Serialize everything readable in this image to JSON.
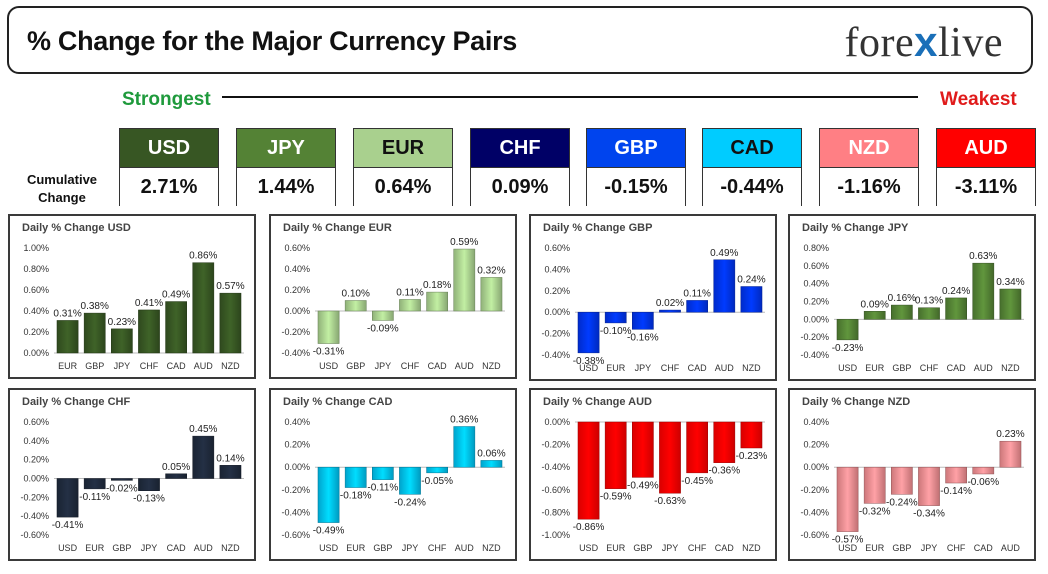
{
  "header": {
    "title": "% Change for the Major Currency Pairs",
    "logo_left": "fore",
    "logo_x": "x",
    "logo_right": "live"
  },
  "strength": {
    "strongest_label": "Strongest",
    "weakest_label": "Weakest",
    "cumulative_label_line1": "Cumulative",
    "cumulative_label_line2": "Change",
    "currencies": [
      {
        "code": "USD",
        "value": "2.71%",
        "head_bg": "#375623",
        "head_fg": "#ffffff"
      },
      {
        "code": "JPY",
        "value": "1.44%",
        "head_bg": "#548235",
        "head_fg": "#ffffff"
      },
      {
        "code": "EUR",
        "value": "0.64%",
        "head_bg": "#a9d08e",
        "head_fg": "#111111"
      },
      {
        "code": "CHF",
        "value": "0.09%",
        "head_bg": "#000066",
        "head_fg": "#ffffff"
      },
      {
        "code": "GBP",
        "value": "-0.15%",
        "head_bg": "#0044ee",
        "head_fg": "#ffffff"
      },
      {
        "code": "CAD",
        "value": "-0.44%",
        "head_bg": "#00ccff",
        "head_fg": "#111111"
      },
      {
        "code": "NZD",
        "value": "-1.16%",
        "head_bg": "#ff7f84",
        "head_fg": "#ffffff"
      },
      {
        "code": "AUD",
        "value": "-3.11%",
        "head_bg": "#ff0000",
        "head_fg": "#ffffff"
      }
    ]
  },
  "chart_data": [
    {
      "type": "bar",
      "title": "Daily % Change USD",
      "categories": [
        "EUR",
        "GBP",
        "JPY",
        "CHF",
        "CAD",
        "AUD",
        "NZD"
      ],
      "values": [
        0.31,
        0.38,
        0.23,
        0.41,
        0.49,
        0.86,
        0.57
      ],
      "labels": [
        "0.31%",
        "0.38%",
        "0.23%",
        "0.41%",
        "0.49%",
        "0.86%",
        "0.57%"
      ],
      "ylim": [
        0,
        1.0
      ],
      "yticks": [
        "0.00%",
        "0.20%",
        "0.40%",
        "0.60%",
        "0.80%",
        "1.00%"
      ],
      "color": "#375623"
    },
    {
      "type": "bar",
      "title": "Daily % Change EUR",
      "categories": [
        "USD",
        "GBP",
        "JPY",
        "CHF",
        "CAD",
        "AUD",
        "NZD"
      ],
      "values": [
        -0.31,
        0.1,
        -0.09,
        0.11,
        0.18,
        0.59,
        0.32
      ],
      "labels": [
        "-0.31%",
        "0.10%",
        "-0.09%",
        "0.11%",
        "0.18%",
        "0.59%",
        "0.32%"
      ],
      "ylim": [
        -0.4,
        0.6
      ],
      "yticks": [
        "-0.40%",
        "-0.20%",
        "0.00%",
        "0.20%",
        "0.40%",
        "0.60%"
      ],
      "color": "#a9d08e"
    },
    {
      "type": "bar",
      "title": "Daily % Change GBP",
      "categories": [
        "USD",
        "EUR",
        "JPY",
        "CHF",
        "CAD",
        "AUD",
        "NZD"
      ],
      "values": [
        -0.38,
        -0.1,
        -0.16,
        0.02,
        0.11,
        0.49,
        0.24
      ],
      "labels": [
        "-0.38%",
        "-0.10%",
        "-0.16%",
        "0.02%",
        "0.11%",
        "0.49%",
        "0.24%"
      ],
      "ylim": [
        -0.4,
        0.6
      ],
      "yticks": [
        "-0.40%",
        "-0.20%",
        "0.00%",
        "0.20%",
        "0.40%",
        "0.60%"
      ],
      "color": "#0033ee"
    },
    {
      "type": "bar",
      "title": "Daily % Change JPY",
      "categories": [
        "USD",
        "EUR",
        "GBP",
        "CHF",
        "CAD",
        "AUD",
        "NZD"
      ],
      "values": [
        -0.23,
        0.09,
        0.16,
        0.13,
        0.24,
        0.63,
        0.34
      ],
      "labels": [
        "-0.23%",
        "0.09%",
        "0.16%",
        "0.13%",
        "0.24%",
        "0.63%",
        "0.34%"
      ],
      "ylim": [
        -0.4,
        0.8
      ],
      "yticks": [
        "-0.40%",
        "-0.20%",
        "0.00%",
        "0.20%",
        "0.40%",
        "0.60%",
        "0.80%"
      ],
      "color": "#548235"
    },
    {
      "type": "bar",
      "title": "Daily % Change CHF",
      "categories": [
        "USD",
        "EUR",
        "GBP",
        "JPY",
        "CAD",
        "AUD",
        "NZD"
      ],
      "values": [
        -0.41,
        -0.11,
        -0.02,
        -0.13,
        0.05,
        0.45,
        0.14
      ],
      "labels": [
        "-0.41%",
        "-0.11%",
        "-0.02%",
        "-0.13%",
        "0.05%",
        "0.45%",
        "0.14%"
      ],
      "ylim": [
        -0.6,
        0.6
      ],
      "yticks": [
        "-0.60%",
        "-0.40%",
        "-0.20%",
        "0.00%",
        "0.20%",
        "0.40%",
        "0.60%"
      ],
      "color": "#1f2a3c"
    },
    {
      "type": "bar",
      "title": "Daily % Change CAD",
      "categories": [
        "USD",
        "EUR",
        "GBP",
        "JPY",
        "CHF",
        "AUD",
        "NZD"
      ],
      "values": [
        -0.49,
        -0.18,
        -0.11,
        -0.24,
        -0.05,
        0.36,
        0.06
      ],
      "labels": [
        "-0.49%",
        "-0.18%",
        "-0.11%",
        "-0.24%",
        "-0.05%",
        "0.36%",
        "0.06%"
      ],
      "ylim": [
        -0.6,
        0.4
      ],
      "yticks": [
        "-0.60%",
        "-0.40%",
        "-0.20%",
        "0.00%",
        "0.20%",
        "0.40%"
      ],
      "color": "#00c0f0"
    },
    {
      "type": "bar",
      "title": "Daily % Change AUD",
      "categories": [
        "USD",
        "EUR",
        "GBP",
        "JPY",
        "CHF",
        "CAD",
        "NZD"
      ],
      "values": [
        -0.86,
        -0.59,
        -0.49,
        -0.63,
        -0.45,
        -0.36,
        -0.23
      ],
      "labels": [
        "-0.86%",
        "-0.59%",
        "-0.49%",
        "-0.63%",
        "-0.45%",
        "-0.36%",
        "-0.23%"
      ],
      "ylim": [
        -1.0,
        0.0
      ],
      "yticks": [
        "-1.00%",
        "-0.80%",
        "-0.60%",
        "-0.40%",
        "-0.20%",
        "0.00%"
      ],
      "color": "#ff0000"
    },
    {
      "type": "bar",
      "title": "Daily % Change NZD",
      "categories": [
        "USD",
        "EUR",
        "GBP",
        "JPY",
        "CHF",
        "CAD",
        "AUD"
      ],
      "values": [
        -0.57,
        -0.32,
        -0.24,
        -0.34,
        -0.14,
        -0.06,
        0.23
      ],
      "labels": [
        "-0.57%",
        "-0.32%",
        "-0.24%",
        "-0.34%",
        "-0.14%",
        "-0.06%",
        "0.23%"
      ],
      "ylim": [
        -0.6,
        0.4
      ],
      "yticks": [
        "-0.60%",
        "-0.40%",
        "-0.20%",
        "0.00%",
        "0.20%",
        "0.40%"
      ],
      "color": "#f08c90"
    }
  ]
}
